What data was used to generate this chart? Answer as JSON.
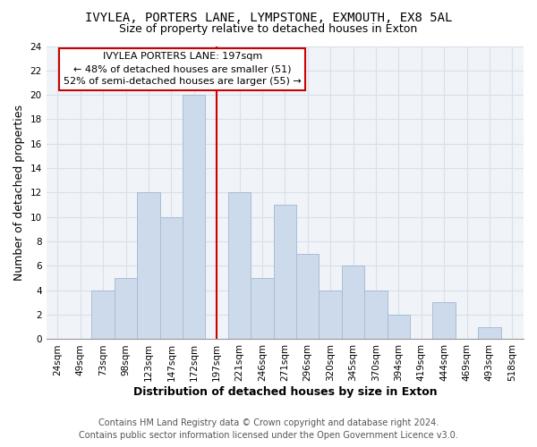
{
  "title": "IVYLEA, PORTERS LANE, LYMPSTONE, EXMOUTH, EX8 5AL",
  "subtitle": "Size of property relative to detached houses in Exton",
  "xlabel": "Distribution of detached houses by size in Exton",
  "ylabel": "Number of detached properties",
  "bin_labels": [
    "24sqm",
    "49sqm",
    "73sqm",
    "98sqm",
    "123sqm",
    "147sqm",
    "172sqm",
    "197sqm",
    "221sqm",
    "246sqm",
    "271sqm",
    "296sqm",
    "320sqm",
    "345sqm",
    "370sqm",
    "394sqm",
    "419sqm",
    "444sqm",
    "469sqm",
    "493sqm",
    "518sqm"
  ],
  "bar_values": [
    0,
    0,
    4,
    5,
    12,
    10,
    20,
    0,
    12,
    5,
    11,
    7,
    4,
    6,
    4,
    2,
    0,
    3,
    0,
    1,
    0
  ],
  "bar_color": "#cddaeb",
  "bar_edge_color": "#a8bdd4",
  "reference_line_x_label": "197sqm",
  "reference_line_color": "#cc0000",
  "ylim": [
    0,
    24
  ],
  "yticks": [
    0,
    2,
    4,
    6,
    8,
    10,
    12,
    14,
    16,
    18,
    20,
    22,
    24
  ],
  "annotation_title": "IVYLEA PORTERS LANE: 197sqm",
  "annotation_line1": "← 48% of detached houses are smaller (51)",
  "annotation_line2": "52% of semi-detached houses are larger (55) →",
  "annotation_box_color": "#ffffff",
  "annotation_box_edge": "#cc0000",
  "footer_line1": "Contains HM Land Registry data © Crown copyright and database right 2024.",
  "footer_line2": "Contains public sector information licensed under the Open Government Licence v3.0.",
  "background_color": "#ffffff",
  "plot_bg_color": "#f0f4f8",
  "grid_color": "#d8e0e8",
  "title_fontsize": 10,
  "subtitle_fontsize": 9,
  "axis_label_fontsize": 9,
  "tick_fontsize": 7.5,
  "footer_fontsize": 7,
  "annotation_fontsize": 8
}
